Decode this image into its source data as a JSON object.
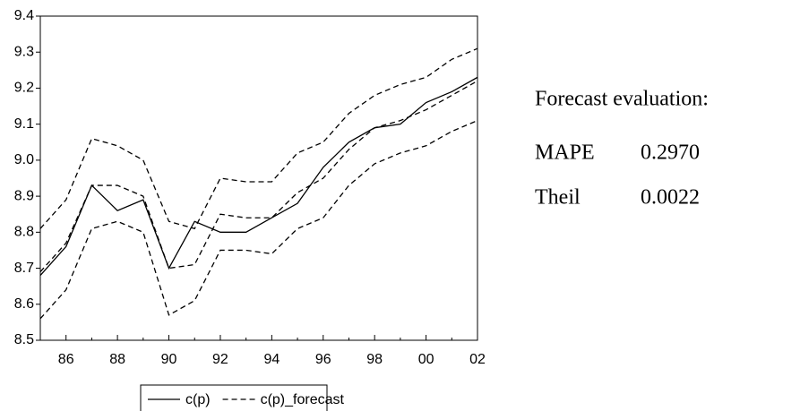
{
  "chart_data": {
    "type": "line",
    "categories": [
      null,
      "86",
      null,
      "88",
      null,
      "90",
      null,
      "92",
      null,
      "94",
      null,
      "96",
      null,
      "98",
      null,
      "00",
      null,
      "02"
    ],
    "series": [
      {
        "name": "c(p)",
        "color": "#000000",
        "dash": "solid",
        "values": [
          8.68,
          8.76,
          8.93,
          8.86,
          8.89,
          8.7,
          8.83,
          8.8,
          8.8,
          8.84,
          8.88,
          8.98,
          9.05,
          9.09,
          9.1,
          9.16,
          9.19,
          9.23
        ]
      },
      {
        "name": "c(p)_forecast",
        "color": "#000000",
        "dash": "dashed",
        "values": [
          8.69,
          8.77,
          8.93,
          8.93,
          8.9,
          8.7,
          8.71,
          8.85,
          8.84,
          8.84,
          8.91,
          8.95,
          9.03,
          9.09,
          9.11,
          9.14,
          9.18,
          9.22
        ]
      },
      {
        "color": "#000000",
        "dash": "dashed",
        "values": [
          8.81,
          8.89,
          9.06,
          9.04,
          9.0,
          8.83,
          8.81,
          8.95,
          8.94,
          8.94,
          9.02,
          9.05,
          9.13,
          9.18,
          9.21,
          9.23,
          9.28,
          9.31
        ]
      },
      {
        "color": "#000000",
        "dash": "dashed",
        "values": [
          8.56,
          8.64,
          8.81,
          8.83,
          8.8,
          8.57,
          8.61,
          8.75,
          8.75,
          8.74,
          8.81,
          8.84,
          8.93,
          8.99,
          9.02,
          9.04,
          9.08,
          9.11
        ]
      }
    ],
    "ylim": [
      8.5,
      9.4
    ],
    "yticks": [
      8.5,
      8.6,
      8.7,
      8.8,
      8.9,
      {
        "value": 9,
        "label": "9.0"
      },
      9.1,
      9.2,
      9.3,
      9.4
    ],
    "grid": false,
    "legend": "bottom"
  },
  "panel": {
    "title": "Forecast evaluation:",
    "rows": [
      [
        "MAPE",
        "0.2970"
      ],
      [
        "Theil",
        "0.0022"
      ]
    ]
  }
}
